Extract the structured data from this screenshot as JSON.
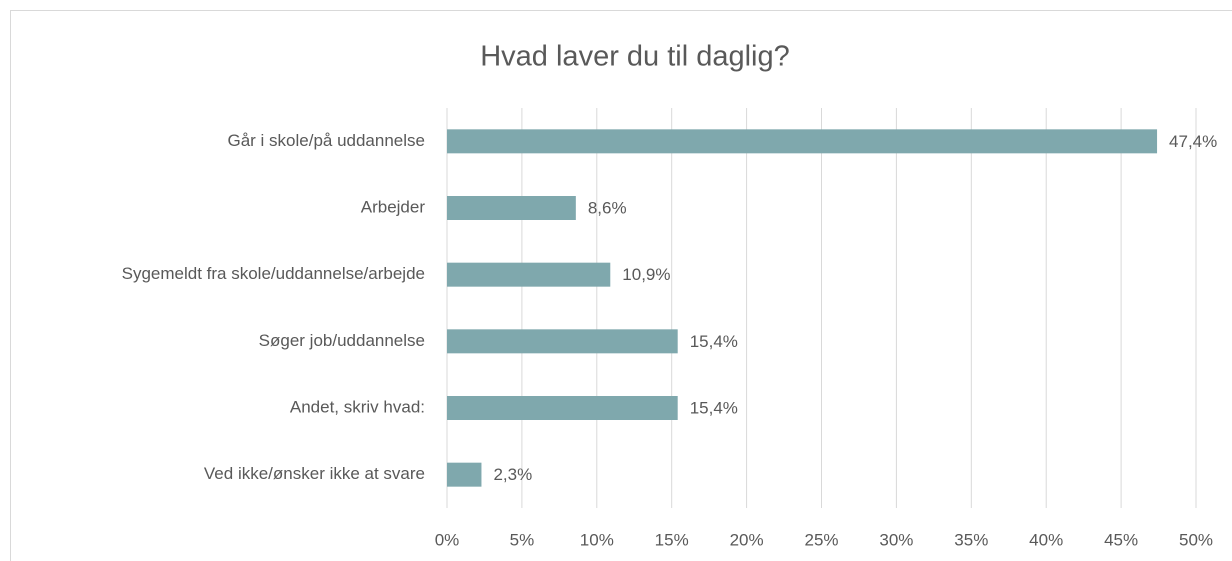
{
  "chart_data": {
    "type": "bar",
    "orientation": "horizontal",
    "title": "Hvad laver du til daglig?",
    "categories": [
      "Går i skole/på uddannelse",
      "Arbejder",
      "Sygemeldt fra skole/uddannelse/arbejde",
      "Søger job/uddannelse",
      "Andet, skriv hvad:",
      "Ved ikke/ønsker ikke at svare"
    ],
    "values": [
      47.4,
      8.6,
      10.9,
      15.4,
      15.4,
      2.3
    ],
    "value_labels": [
      "47,4%",
      "8,6%",
      "10,9%",
      "15,4%",
      "15,4%",
      "2,3%"
    ],
    "color": "#7fa8ad",
    "xlim": [
      0,
      50
    ],
    "xticks": [
      {
        "value": 0,
        "label": "0%"
      },
      {
        "value": 5,
        "label": "5%"
      },
      {
        "value": 10,
        "label": "10%"
      },
      {
        "value": 15,
        "label": "15%"
      },
      {
        "value": 20,
        "label": "20%"
      },
      {
        "value": 25,
        "label": "25%"
      },
      {
        "value": 30,
        "label": "30%"
      },
      {
        "value": 35,
        "label": "35%"
      },
      {
        "value": 40,
        "label": "40%"
      },
      {
        "value": 45,
        "label": "45%"
      },
      {
        "value": 50,
        "label": "50%"
      }
    ],
    "grid": true
  }
}
